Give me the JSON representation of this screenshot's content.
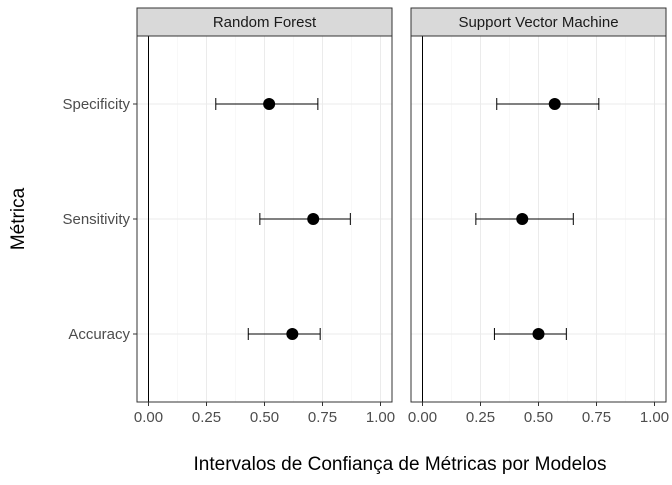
{
  "chart_data": {
    "type": "scatter",
    "subtype": "point-range-faceted",
    "xlabel": "Intervalos de Confiança de Métricas por Modelos",
    "ylabel": "Métrica",
    "xlim": [
      0,
      1
    ],
    "x_ticks": [
      "0.00",
      "0.25",
      "0.50",
      "0.75",
      "1.00"
    ],
    "x_tick_values": [
      0,
      0.25,
      0.5,
      0.75,
      1.0
    ],
    "categories": [
      "Specificity",
      "Sensitivity",
      "Accuracy"
    ],
    "reference_line_x": 0,
    "grid": true,
    "panels": [
      {
        "title": "Random Forest",
        "points": [
          {
            "metric": "Specificity",
            "estimate": 0.52,
            "lower": 0.29,
            "upper": 0.73
          },
          {
            "metric": "Sensitivity",
            "estimate": 0.71,
            "lower": 0.48,
            "upper": 0.87
          },
          {
            "metric": "Accuracy",
            "estimate": 0.62,
            "lower": 0.43,
            "upper": 0.74
          }
        ]
      },
      {
        "title": "Support Vector Machine",
        "points": [
          {
            "metric": "Specificity",
            "estimate": 0.57,
            "lower": 0.32,
            "upper": 0.76
          },
          {
            "metric": "Sensitivity",
            "estimate": 0.43,
            "lower": 0.23,
            "upper": 0.65
          },
          {
            "metric": "Accuracy",
            "estimate": 0.5,
            "lower": 0.31,
            "upper": 0.62
          }
        ]
      }
    ]
  }
}
